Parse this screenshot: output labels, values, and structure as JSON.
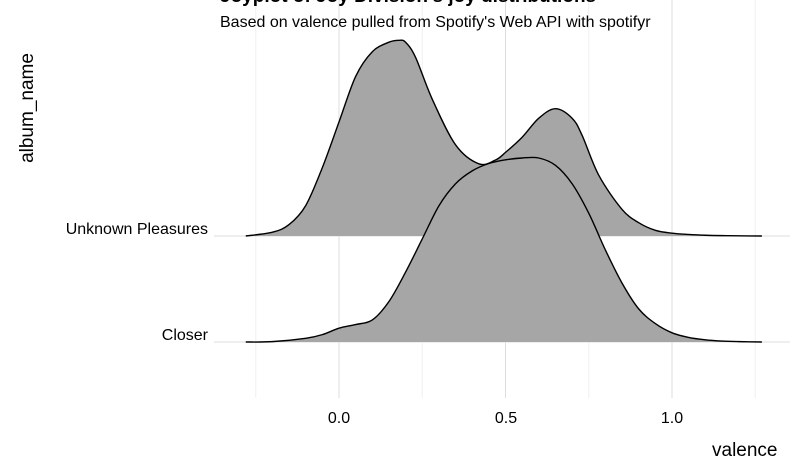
{
  "chart_data": {
    "type": "area",
    "title": "Joyplot of Joy Division's joy distributions",
    "subtitle": "Based on valence pulled from Spotify's Web API with spotifyr",
    "xlabel": "valence",
    "ylabel": "album_name",
    "x_ticks": [
      "0.0",
      "0.5",
      "1.0"
    ],
    "xlim": [
      -0.3,
      1.27
    ],
    "grid": true,
    "categories": [
      "Unknown Pleasures",
      "Closer"
    ],
    "series": [
      {
        "name": "Unknown Pleasures",
        "x": [
          -0.28,
          -0.2,
          -0.15,
          -0.1,
          -0.05,
          0.0,
          0.05,
          0.1,
          0.15,
          0.18,
          0.2,
          0.23,
          0.28,
          0.35,
          0.42,
          0.47,
          0.5,
          0.55,
          0.6,
          0.65,
          0.7,
          0.73,
          0.78,
          0.85,
          0.9,
          0.95,
          1.0,
          1.05,
          1.1,
          1.15,
          1.2,
          1.27
        ],
        "density": [
          0.0,
          0.02,
          0.06,
          0.16,
          0.36,
          0.6,
          0.84,
          0.97,
          1.02,
          1.03,
          1.02,
          0.94,
          0.72,
          0.48,
          0.38,
          0.4,
          0.44,
          0.52,
          0.62,
          0.67,
          0.62,
          0.53,
          0.32,
          0.14,
          0.07,
          0.03,
          0.015,
          0.008,
          0.004,
          0.002,
          0.001,
          0.0
        ]
      },
      {
        "name": "Closer",
        "x": [
          -0.28,
          -0.2,
          -0.1,
          -0.05,
          0.0,
          0.05,
          0.1,
          0.15,
          0.2,
          0.25,
          0.3,
          0.35,
          0.4,
          0.45,
          0.5,
          0.55,
          0.6,
          0.65,
          0.7,
          0.75,
          0.8,
          0.85,
          0.9,
          0.95,
          1.0,
          1.05,
          1.1,
          1.15,
          1.2,
          1.27
        ],
        "density": [
          0.0,
          0.002,
          0.02,
          0.04,
          0.075,
          0.095,
          0.12,
          0.22,
          0.38,
          0.56,
          0.74,
          0.86,
          0.93,
          0.97,
          0.99,
          1.0,
          1.0,
          0.96,
          0.86,
          0.7,
          0.5,
          0.32,
          0.18,
          0.1,
          0.05,
          0.025,
          0.012,
          0.005,
          0.002,
          0.0
        ]
      }
    ]
  }
}
